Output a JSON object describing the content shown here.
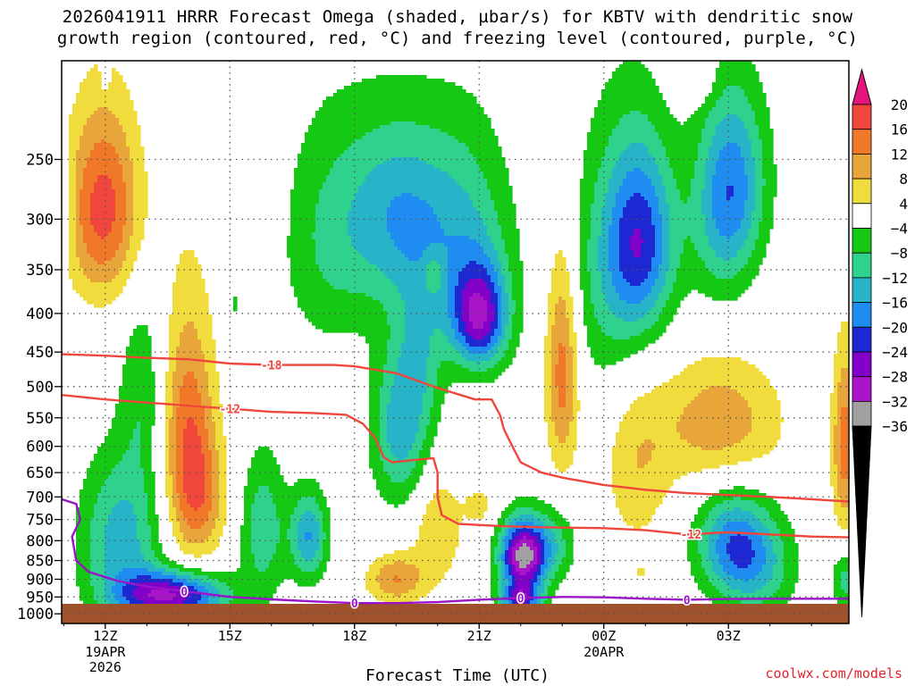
{
  "title": {
    "line1": "2026041911 HRRR Forecast Omega (shaded, µbar/s) for KBTV with dendritic snow",
    "line2": "growth region (contoured, red, °C) and freezing level (contoured, purple, °C)"
  },
  "credit": "coolwx.com/models",
  "chart_data": {
    "type": "heatmap",
    "xlabel": "Forecast Time (UTC)",
    "ylabel": "",
    "x_ticks": [
      {
        "hour": 12,
        "label": "12Z",
        "sub1": "19APR",
        "sub2": "2026"
      },
      {
        "hour": 15,
        "label": "15Z",
        "sub1": "",
        "sub2": ""
      },
      {
        "hour": 18,
        "label": "18Z",
        "sub1": "",
        "sub2": ""
      },
      {
        "hour": 21,
        "label": "21Z",
        "sub1": "",
        "sub2": ""
      },
      {
        "hour": 24,
        "label": "00Z",
        "sub1": "20APR",
        "sub2": ""
      },
      {
        "hour": 27,
        "label": "03Z",
        "sub1": "",
        "sub2": ""
      }
    ],
    "x_range_hours": [
      10.95,
      29.9
    ],
    "y_scale": "log-pressure",
    "y_range_hPa": [
      1030,
      185
    ],
    "y_ticks": [
      250,
      300,
      350,
      400,
      450,
      500,
      550,
      600,
      650,
      700,
      750,
      800,
      850,
      900,
      950,
      1000
    ],
    "grid": true,
    "colorbar": {
      "labels": [
        "20",
        "16",
        "12",
        "8",
        "4",
        "−4",
        "−8",
        "−12",
        "−16",
        "−20",
        "−24",
        "−28",
        "−32",
        "−36"
      ],
      "bands": [
        {
          "min": 20,
          "max": null,
          "color": "#e8147e"
        },
        {
          "min": 16,
          "max": 20,
          "color": "#f0463c"
        },
        {
          "min": 12,
          "max": 16,
          "color": "#f07828"
        },
        {
          "min": 8,
          "max": 12,
          "color": "#e8a63a"
        },
        {
          "min": 4,
          "max": 8,
          "color": "#f0dc3c"
        },
        {
          "min": -4,
          "max": 4,
          "color": "#ffffff"
        },
        {
          "min": -8,
          "max": -4,
          "color": "#14c814"
        },
        {
          "min": -12,
          "max": -8,
          "color": "#2ed28c"
        },
        {
          "min": -16,
          "max": -12,
          "color": "#28b4c8"
        },
        {
          "min": -20,
          "max": -16,
          "color": "#1e8cf0"
        },
        {
          "min": -24,
          "max": -20,
          "color": "#1e28d2"
        },
        {
          "min": -28,
          "max": -24,
          "color": "#8200c8"
        },
        {
          "min": -32,
          "max": -28,
          "color": "#aa14c8"
        },
        {
          "min": -36,
          "max": -32,
          "color": "#a0a0a0"
        },
        {
          "min": null,
          "max": -36,
          "color": "#000000"
        }
      ]
    },
    "omega_features": [
      {
        "t": 11.95,
        "p": 290,
        "peak": 18,
        "st": 0.9,
        "sp": 85
      },
      {
        "t": 11.0,
        "p": 290,
        "peak": -6,
        "st": 0.25,
        "sp": 40
      },
      {
        "t": 14.0,
        "p": 600,
        "peak": 16,
        "st": 0.65,
        "sp": 230
      },
      {
        "t": 14.4,
        "p": 700,
        "peak": 7,
        "st": 0.6,
        "sp": 120
      },
      {
        "t": 12.4,
        "p": 790,
        "peak": -14,
        "st": 1.0,
        "sp": 190
      },
      {
        "t": 13.6,
        "p": 945,
        "peak": -28,
        "st": 1.3,
        "sp": 70
      },
      {
        "t": 12.9,
        "p": 500,
        "peak": -7,
        "st": 0.55,
        "sp": 150
      },
      {
        "t": 15.8,
        "p": 770,
        "peak": -11,
        "st": 0.55,
        "sp": 170
      },
      {
        "t": 16.9,
        "p": 790,
        "peak": -16,
        "st": 0.45,
        "sp": 110
      },
      {
        "t": 15.1,
        "p": 390,
        "peak": -5,
        "st": 0.15,
        "sp": 20
      },
      {
        "t": 15.8,
        "p": 295,
        "peak": 5,
        "st": 0.35,
        "sp": 45
      },
      {
        "t": 17.8,
        "p": 470,
        "peak": 4.6,
        "st": 0.12,
        "sp": 15
      },
      {
        "t": 17.4,
        "p": 320,
        "peak": -8,
        "st": 1.2,
        "sp": 120
      },
      {
        "t": 19.0,
        "p": 295,
        "peak": -13,
        "st": 1.2,
        "sp": 85
      },
      {
        "t": 19.1,
        "p": 570,
        "peak": -14,
        "st": 0.7,
        "sp": 140
      },
      {
        "t": 21.0,
        "p": 405,
        "peak": -26,
        "st": 0.7,
        "sp": 65
      },
      {
        "t": 20.6,
        "p": 310,
        "peak": -11,
        "st": 1.2,
        "sp": 100
      },
      {
        "t": 19.6,
        "p": 455,
        "peak": -8,
        "st": 0.6,
        "sp": 110
      },
      {
        "t": 19.9,
        "p": 355,
        "peak": 7,
        "st": 0.25,
        "sp": 20
      },
      {
        "t": 19.0,
        "p": 900,
        "peak": 12,
        "st": 0.7,
        "sp": 70
      },
      {
        "t": 20.0,
        "p": 770,
        "peak": 8,
        "st": 0.6,
        "sp": 130
      },
      {
        "t": 21.0,
        "p": 720,
        "peak": 6,
        "st": 0.35,
        "sp": 40
      },
      {
        "t": 22.05,
        "p": 840,
        "peak": -34,
        "st": 0.55,
        "sp": 95
      },
      {
        "t": 22.8,
        "p": 810,
        "peak": -9,
        "st": 0.55,
        "sp": 90
      },
      {
        "t": 22.0,
        "p": 955,
        "peak": -20,
        "st": 0.5,
        "sp": 40
      },
      {
        "t": 23.0,
        "p": 470,
        "peak": 15,
        "st": 0.4,
        "sp": 160
      },
      {
        "t": 24.9,
        "p": 320,
        "peak": -20,
        "st": 0.85,
        "sp": 95
      },
      {
        "t": 24.1,
        "p": 360,
        "peak": -8,
        "st": 1.1,
        "sp": 150
      },
      {
        "t": 26.9,
        "p": 290,
        "peak": -14,
        "st": 0.8,
        "sp": 90
      },
      {
        "t": 27.3,
        "p": 260,
        "peak": -8,
        "st": 0.8,
        "sp": 70
      },
      {
        "t": 26.8,
        "p": 560,
        "peak": 11,
        "st": 1.5,
        "sp": 110
      },
      {
        "t": 24.8,
        "p": 640,
        "peak": 7,
        "st": 0.8,
        "sp": 170
      },
      {
        "t": 27.1,
        "p": 810,
        "peak": -17,
        "st": 0.9,
        "sp": 130
      },
      {
        "t": 27.8,
        "p": 870,
        "peak": -9,
        "st": 0.9,
        "sp": 140
      },
      {
        "t": 29.8,
        "p": 600,
        "peak": 14,
        "st": 0.3,
        "sp": 170
      },
      {
        "t": 29.8,
        "p": 900,
        "peak": -10,
        "st": 0.3,
        "sp": 80
      },
      {
        "t": 26.2,
        "p": 195,
        "peak": 6,
        "st": 0.5,
        "sp": 15
      },
      {
        "t": 12.0,
        "p": 195,
        "peak": -6,
        "st": 0.1,
        "sp": 8
      },
      {
        "t": 24.9,
        "p": 880,
        "peak": 5,
        "st": 0.12,
        "sp": 20
      }
    ],
    "series": [
      {
        "name": "-18",
        "color": "#f0463c",
        "points": [
          [
            10.95,
            453
          ],
          [
            12.0,
            455
          ],
          [
            13.0,
            458
          ],
          [
            14.0,
            460
          ],
          [
            15.0,
            466
          ],
          [
            16.0,
            468
          ],
          [
            17.5,
            468
          ],
          [
            18.0,
            470
          ],
          [
            19.0,
            480
          ],
          [
            20.0,
            502
          ],
          [
            20.9,
            520
          ],
          [
            21.3,
            520
          ],
          [
            21.5,
            545
          ],
          [
            21.6,
            570
          ],
          [
            21.8,
            600
          ],
          [
            22.0,
            630
          ],
          [
            22.5,
            650
          ],
          [
            23.0,
            660
          ],
          [
            24.0,
            675
          ],
          [
            25.0,
            685
          ],
          [
            26.0,
            692
          ],
          [
            27.0,
            696
          ],
          [
            28.0,
            700
          ],
          [
            29.0,
            705
          ],
          [
            29.9,
            710
          ]
        ],
        "labels": [
          {
            "t": 16.0,
            "text": "-18"
          }
        ]
      },
      {
        "name": "-12",
        "color": "#f0463c",
        "points": [
          [
            10.95,
            513
          ],
          [
            12.0,
            520
          ],
          [
            13.0,
            525
          ],
          [
            14.0,
            530
          ],
          [
            15.0,
            535
          ],
          [
            16.0,
            540
          ],
          [
            17.0,
            542
          ],
          [
            17.8,
            545
          ],
          [
            18.2,
            560
          ],
          [
            18.5,
            585
          ],
          [
            18.7,
            620
          ],
          [
            18.9,
            630
          ],
          [
            19.5,
            625
          ],
          [
            19.9,
            622
          ],
          [
            20.0,
            650
          ],
          [
            20.0,
            700
          ],
          [
            20.1,
            740
          ],
          [
            20.5,
            760
          ],
          [
            21.5,
            765
          ],
          [
            22.5,
            768
          ],
          [
            24.0,
            770
          ],
          [
            25.0,
            775
          ],
          [
            26.0,
            785
          ],
          [
            27.0,
            780
          ],
          [
            28.0,
            785
          ],
          [
            29.0,
            790
          ],
          [
            29.9,
            792
          ]
        ],
        "labels": [
          {
            "t": 15.0,
            "text": "-12"
          },
          {
            "t": 26.1,
            "text": "-12"
          }
        ]
      },
      {
        "name": "0",
        "color": "#9a14c8",
        "points": [
          [
            10.95,
            705
          ],
          [
            11.3,
            715
          ],
          [
            11.4,
            750
          ],
          [
            11.2,
            790
          ],
          [
            11.3,
            850
          ],
          [
            11.6,
            880
          ],
          [
            12.3,
            905
          ],
          [
            13.0,
            920
          ],
          [
            14.0,
            935
          ],
          [
            15.0,
            950
          ],
          [
            16.0,
            957
          ],
          [
            17.0,
            963
          ],
          [
            18.0,
            968
          ],
          [
            19.0,
            968
          ],
          [
            20.0,
            965
          ],
          [
            21.0,
            958
          ],
          [
            22.0,
            953
          ],
          [
            23.0,
            950
          ],
          [
            24.0,
            951
          ],
          [
            25.0,
            955
          ],
          [
            26.0,
            958
          ],
          [
            27.0,
            956
          ],
          [
            28.0,
            955
          ],
          [
            29.0,
            955
          ],
          [
            29.9,
            955
          ]
        ],
        "labels": [
          {
            "t": 18.0,
            "text": "0"
          },
          {
            "t": 26.0,
            "text": "0"
          },
          {
            "t": 13.9,
            "text": "0"
          },
          {
            "t": 22.0,
            "text": "0"
          }
        ]
      }
    ]
  }
}
